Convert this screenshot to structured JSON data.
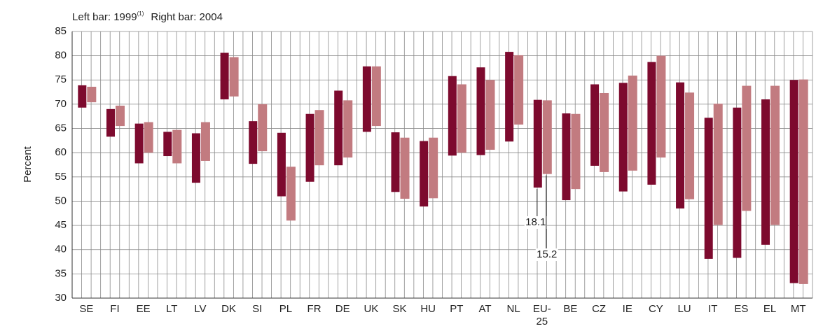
{
  "chart_data": {
    "type": "range-bar",
    "ylabel": "Percent",
    "categories": [
      "SE",
      "FI",
      "EE",
      "LT",
      "LV",
      "DK",
      "SI",
      "PL",
      "FR",
      "DE",
      "UK",
      "SK",
      "HU",
      "PT",
      "AT",
      "NL",
      "EU-25",
      "BE",
      "CZ",
      "IE",
      "CY",
      "LU",
      "IT",
      "ES",
      "EL",
      "MT"
    ],
    "series": [
      {
        "name": "Left bar: 1999",
        "name_note": "(1)",
        "color": "#7d0a2e",
        "values": [
          [
            69.3,
            73.9
          ],
          [
            63.3,
            69.0
          ],
          [
            57.8,
            66.0
          ],
          [
            59.3,
            64.3
          ],
          [
            53.8,
            64.0
          ],
          [
            71.0,
            80.6
          ],
          [
            57.7,
            66.5
          ],
          [
            51.0,
            64.1
          ],
          [
            54.0,
            68.0
          ],
          [
            57.4,
            72.8
          ],
          [
            64.3,
            77.8
          ],
          [
            51.9,
            64.2
          ],
          [
            48.9,
            62.4
          ],
          [
            59.4,
            75.8
          ],
          [
            59.5,
            77.6
          ],
          [
            62.3,
            80.8
          ],
          [
            52.8,
            70.9
          ],
          [
            50.2,
            68.1
          ],
          [
            57.3,
            74.1
          ],
          [
            52.0,
            74.4
          ],
          [
            53.4,
            78.7
          ],
          [
            48.5,
            74.5
          ],
          [
            38.1,
            67.2
          ],
          [
            38.3,
            69.3
          ],
          [
            41.0,
            71.0
          ],
          [
            33.1,
            75.0
          ]
        ]
      },
      {
        "name": "Right bar: 2004",
        "color": "#c27b80",
        "values": [
          [
            70.4,
            73.6
          ],
          [
            65.5,
            69.7
          ],
          [
            60.0,
            66.3
          ],
          [
            57.8,
            64.7
          ],
          [
            58.3,
            66.3
          ],
          [
            71.6,
            79.7
          ],
          [
            60.3,
            70.0
          ],
          [
            46.0,
            57.1
          ],
          [
            57.4,
            68.8
          ],
          [
            59.0,
            70.8
          ],
          [
            65.5,
            77.8
          ],
          [
            50.5,
            63.1
          ],
          [
            50.6,
            63.1
          ],
          [
            60.0,
            74.1
          ],
          [
            60.6,
            75.0
          ],
          [
            65.8,
            80.1
          ],
          [
            55.6,
            70.8
          ],
          [
            52.5,
            68.0
          ],
          [
            56.0,
            72.3
          ],
          [
            56.3,
            75.9
          ],
          [
            59.0,
            80.0
          ],
          [
            50.4,
            72.4
          ],
          [
            45.1,
            70.1
          ],
          [
            48.0,
            73.8
          ],
          [
            45.1,
            73.8
          ],
          [
            32.9,
            75.1
          ]
        ]
      }
    ],
    "annotations": [
      {
        "text": "18.1",
        "category": "EU-25",
        "series": 0
      },
      {
        "text": "15.2",
        "category": "EU-25",
        "series": 1
      }
    ],
    "ylim": [
      30,
      85
    ],
    "yticks": [
      30,
      35,
      40,
      45,
      50,
      55,
      60,
      65,
      70,
      75,
      80,
      85
    ],
    "grid": true
  }
}
